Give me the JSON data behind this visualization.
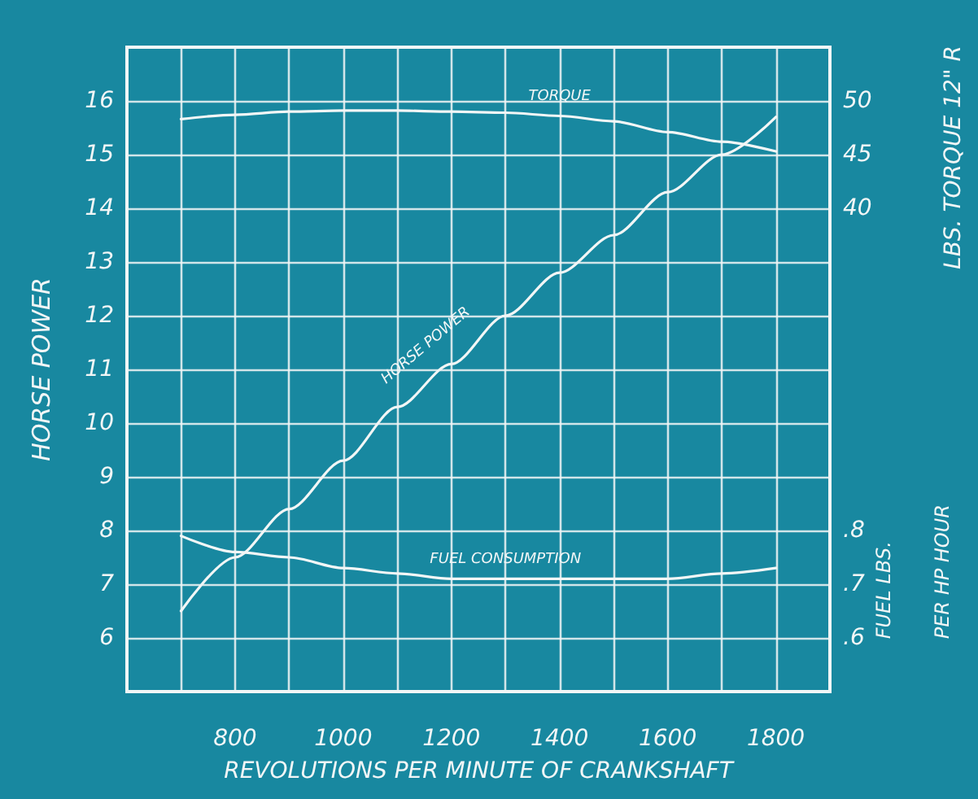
{
  "chart_data": {
    "type": "line",
    "xlabel": "REVOLUTIONS PER MINUTE OF CRANKSHAFT",
    "ylabel": "HORSE POWER",
    "y2label": "LBS. TORQUE 12\" R",
    "y3label": "FUEL LBS.\nPER HP HOUR",
    "x": [
      700,
      800,
      900,
      1000,
      1100,
      1200,
      1300,
      1400,
      1500,
      1600,
      1700,
      1800
    ],
    "series": [
      {
        "name": "TORQUE",
        "color": "#f2f6f6",
        "axis": "y2",
        "values": [
          48.3,
          48.7,
          49.0,
          49.1,
          49.1,
          49.0,
          48.9,
          48.6,
          48.1,
          47.1,
          46.2,
          45.3
        ]
      },
      {
        "name": "HORSE POWER",
        "color": "#f2f6f6",
        "values": [
          6.5,
          7.5,
          8.4,
          9.3,
          10.3,
          11.1,
          12.0,
          12.8,
          13.5,
          14.3,
          15.0,
          15.7
        ]
      },
      {
        "name": "FUEL CONSUMPTION",
        "color": "#f2f6f6",
        "axis": "y3",
        "values": [
          0.79,
          0.76,
          0.75,
          0.73,
          0.72,
          0.71,
          0.71,
          0.71,
          0.71,
          0.71,
          0.72,
          0.73
        ]
      }
    ],
    "xlim": [
      600,
      1900
    ],
    "xticks": [
      {
        "value": 700,
        "label": null
      },
      800,
      {
        "value": 900,
        "label": null
      },
      1000,
      {
        "value": 1100,
        "label": null
      },
      1200,
      {
        "value": 1300,
        "label": null
      },
      1400,
      {
        "value": 1500,
        "label": null
      },
      1600,
      {
        "value": 1700,
        "label": null
      },
      1800
    ],
    "ylim": [
      5,
      17
    ],
    "yticks": [
      6,
      7,
      8,
      9,
      10,
      11,
      12,
      13,
      14,
      15,
      16
    ],
    "y2lim": [
      -5,
      55
    ],
    "y2ticks": [
      40,
      45,
      50
    ],
    "y3lim": [
      0.5,
      1.7
    ],
    "y3ticks": [
      {
        "value": 0.6,
        "label": ".6"
      },
      {
        "value": 0.7,
        "label": ".7"
      },
      {
        "value": 0.8,
        "label": ".8"
      }
    ],
    "grid": true,
    "marker": "none",
    "line_style": "solid",
    "legend": false
  }
}
